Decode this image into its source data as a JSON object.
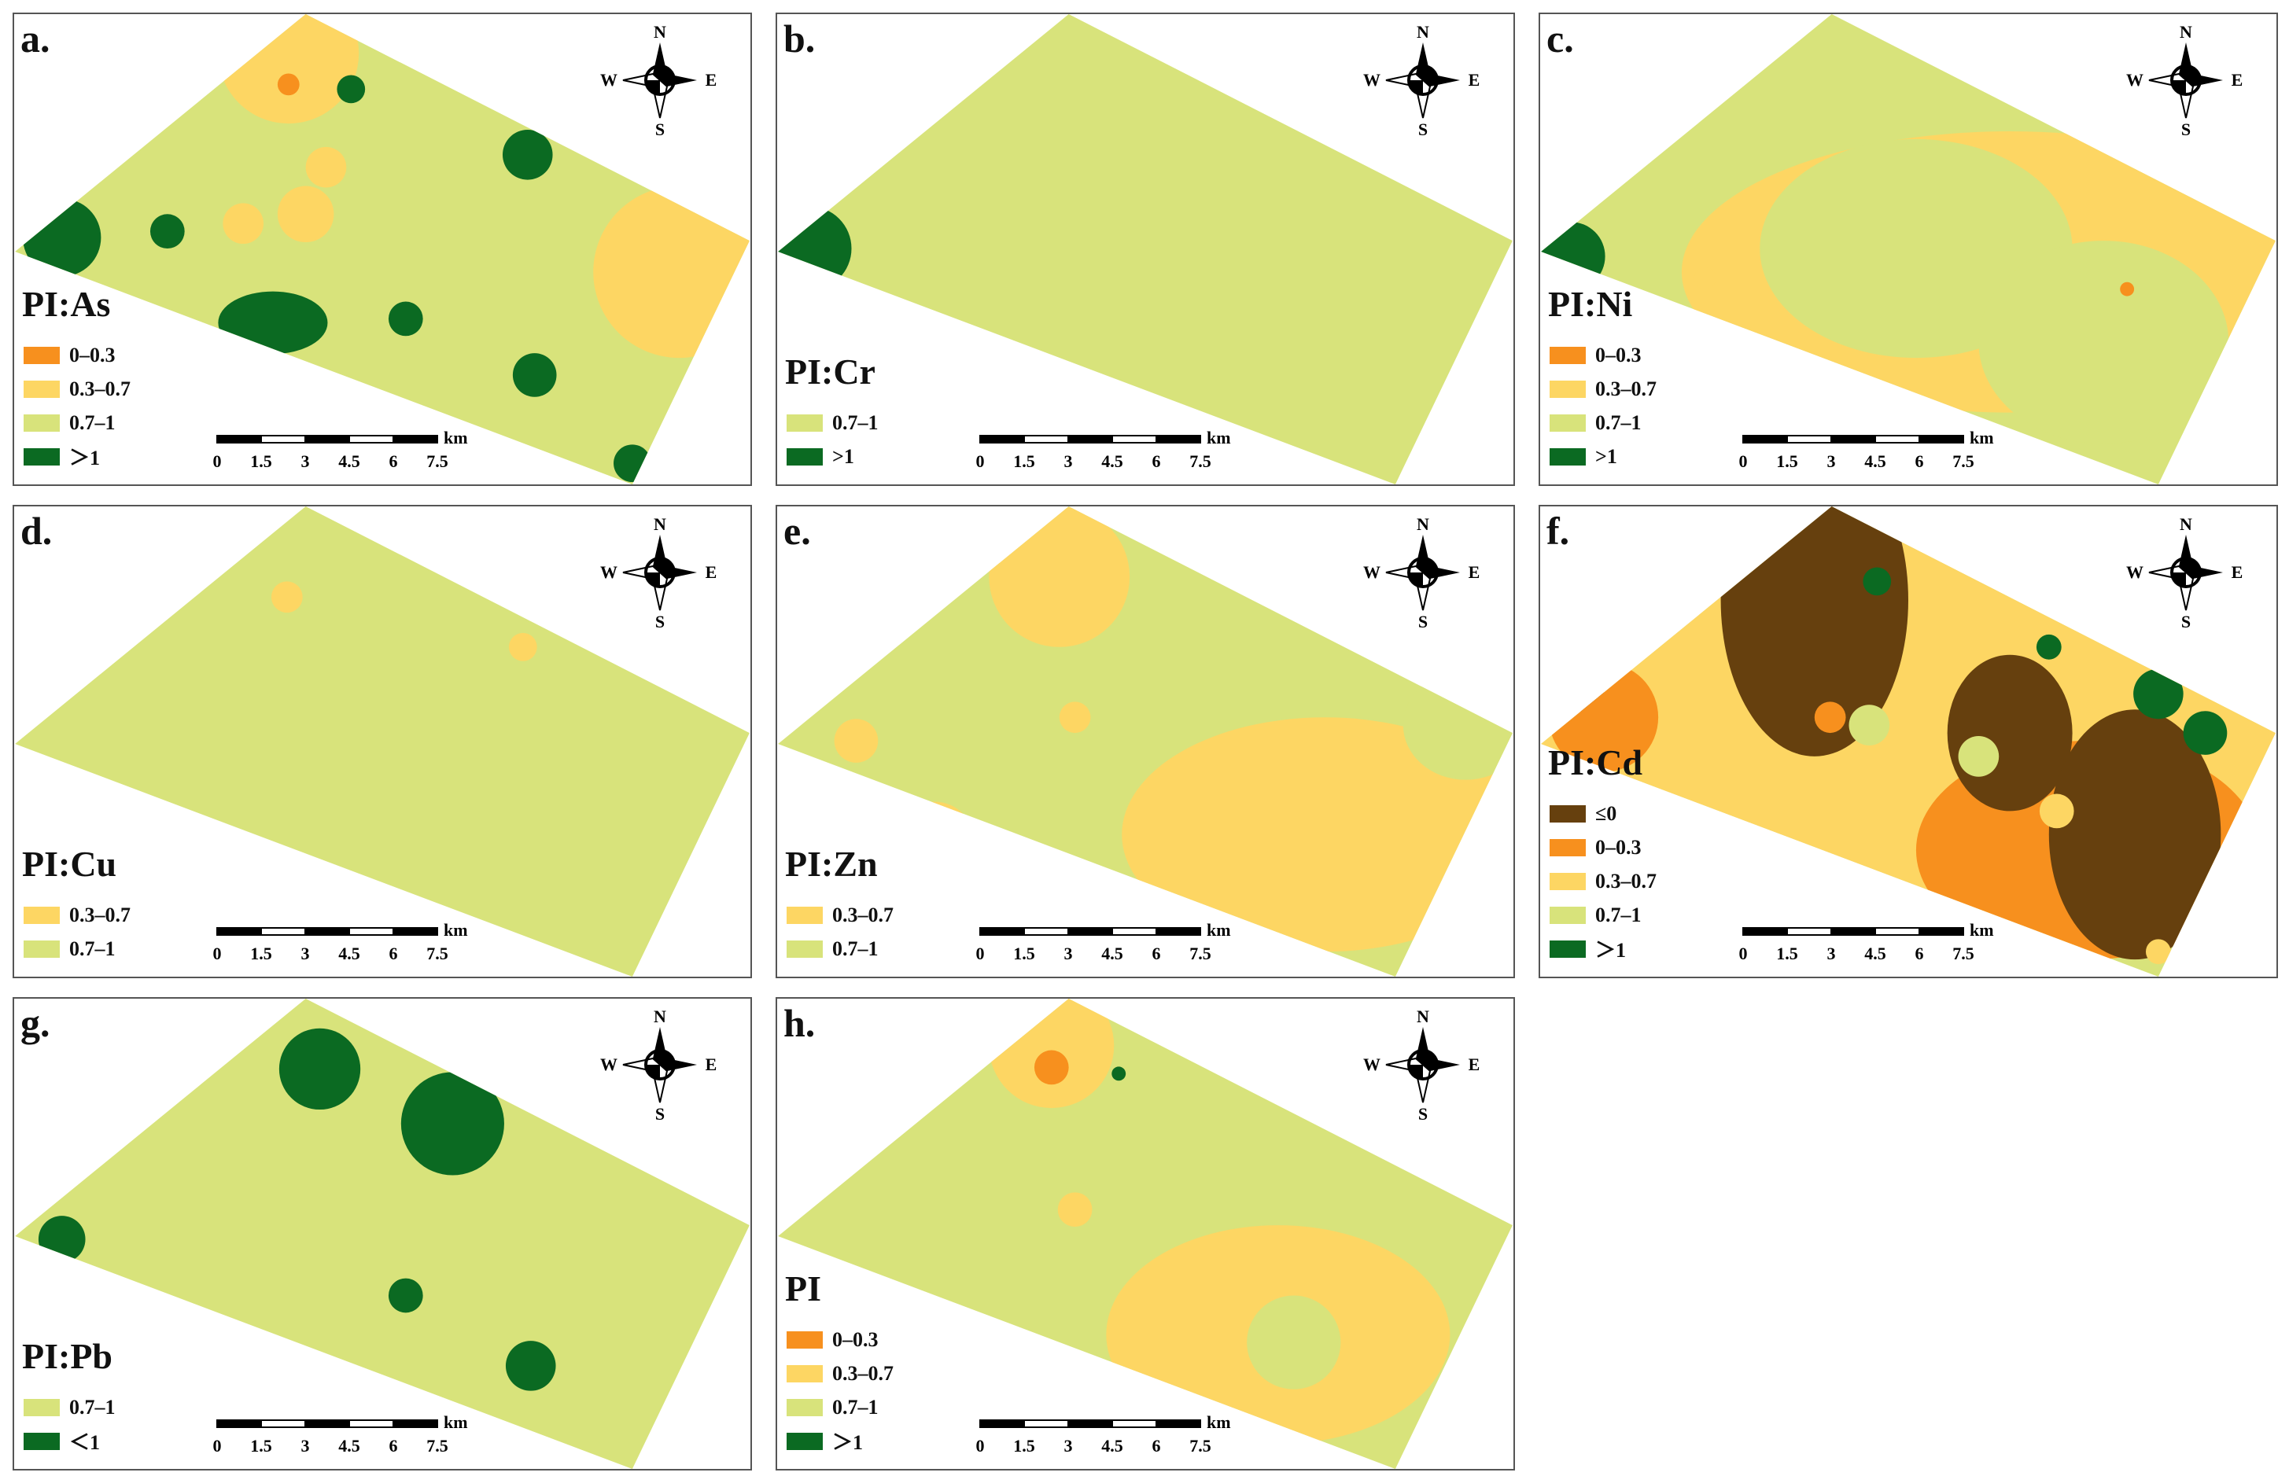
{
  "colors": {
    "none_or_negative": "#66400e",
    "c0_03": "#f7901e",
    "c03_07": "#fdd663",
    "c07_1": "#d8e37b",
    "cgt1": "#0b6a22"
  },
  "compass": {
    "n": "N",
    "s": "S",
    "e": "E",
    "w": "W"
  },
  "scale": {
    "unit": "km",
    "ticks": [
      "0",
      "1.5",
      "3",
      "4.5",
      "6",
      "7.5"
    ]
  },
  "panels": [
    {
      "label": "a.",
      "title": "PI:As",
      "legend": [
        "0–0.3",
        "0.3–0.7",
        "0.7–1",
        "＞1"
      ]
    },
    {
      "label": "b.",
      "title": "PI:Cr",
      "legend": [
        "0.7–1",
        ">1"
      ]
    },
    {
      "label": "c.",
      "title": "PI:Ni",
      "legend": [
        "0–0.3",
        "0.3–0.7",
        "0.7–1",
        ">1"
      ]
    },
    {
      "label": "d.",
      "title": "PI:Cu",
      "legend": [
        "0.3–0.7",
        "0.7–1"
      ]
    },
    {
      "label": "e.",
      "title": "PI:Zn",
      "legend": [
        "0.3–0.7",
        "0.7–1"
      ]
    },
    {
      "label": "f.",
      "title": "PI:Cd",
      "legend": [
        "≤0",
        "0–0.3",
        "0.3–0.7",
        "0.7–1",
        "＞1"
      ]
    },
    {
      "label": "g.",
      "title": "PI:Pb",
      "legend": [
        "0.7–1",
        "＜1"
      ]
    },
    {
      "label": "h.",
      "title": "PI",
      "legend": [
        "0–0.3",
        "0.3–0.7",
        "0.7–1",
        "＞1"
      ]
    }
  ]
}
